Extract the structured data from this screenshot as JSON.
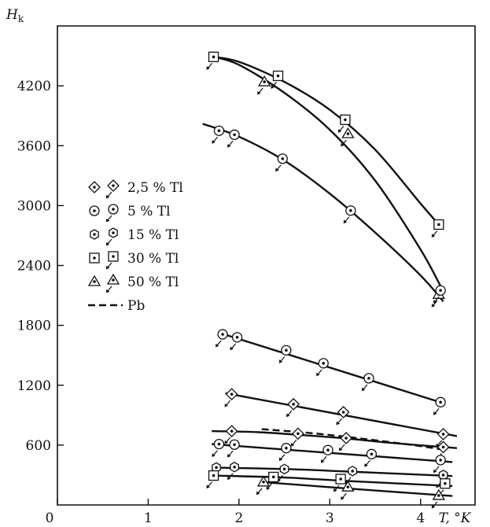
{
  "chart_data": {
    "type": "line",
    "ylabel_main": "H",
    "ylabel_sub": "k",
    "xlabel": "T, °K",
    "xlim": [
      0,
      4.6
    ],
    "ylim": [
      0,
      4800
    ],
    "x_ticks": [
      0,
      1,
      2,
      3,
      4
    ],
    "y_ticks": [
      600,
      1200,
      1800,
      2400,
      3000,
      3600,
      4200
    ],
    "grid": false,
    "legend_placement": "left-middle",
    "legend": [
      {
        "marker": "diamond",
        "label": "2,5 % Tl"
      },
      {
        "marker": "circle",
        "label": "5 % Tl"
      },
      {
        "marker": "hexagon",
        "label": "15 % Tl"
      },
      {
        "marker": "square",
        "label": "30 % Tl"
      },
      {
        "marker": "triangle",
        "label": "50 % Tl"
      },
      {
        "marker": "dash",
        "label": "Pb"
      }
    ],
    "curves": [
      {
        "group": "30 % Tl",
        "x": [
          1.72,
          2.0,
          2.5,
          3.0,
          3.5,
          4.0,
          4.2
        ],
        "y": [
          4490,
          4440,
          4240,
          3960,
          3560,
          3020,
          2810
        ]
      },
      {
        "group": "50 % Tl",
        "x": [
          1.72,
          2.0,
          2.5,
          3.0,
          3.5,
          4.0,
          4.25
        ],
        "y": [
          4490,
          4410,
          4130,
          3760,
          3250,
          2560,
          2140
        ]
      },
      {
        "group": "5 % Tl",
        "x": [
          1.6,
          2.0,
          2.5,
          3.0,
          3.5,
          4.0,
          4.25
        ],
        "y": [
          3820,
          3690,
          3450,
          3120,
          2730,
          2300,
          2040
        ]
      },
      {
        "group": "5 % Tl",
        "x": [
          1.8,
          4.25
        ],
        "y": [
          1720,
          1020
        ]
      },
      {
        "group": "2,5 % Tl",
        "x": [
          1.85,
          4.4
        ],
        "y": [
          1120,
          690
        ]
      },
      {
        "group": "2,5 % Tl",
        "x": [
          1.7,
          2.2,
          2.7,
          3.2,
          3.7,
          4.4
        ],
        "y": [
          740,
          730,
          700,
          665,
          620,
          570
        ]
      },
      {
        "group": "Pb",
        "dashed": true,
        "x": [
          2.25,
          2.8,
          3.4,
          4.0,
          4.3
        ],
        "y": [
          760,
          720,
          660,
          590,
          545
        ]
      },
      {
        "group": "5 % Tl",
        "x": [
          1.7,
          4.35
        ],
        "y": [
          610,
          430
        ]
      },
      {
        "group": "15 % Tl",
        "x": [
          1.7,
          2.5,
          3.2,
          4.35
        ],
        "y": [
          375,
          360,
          335,
          290
        ]
      },
      {
        "group": "30 % Tl",
        "x": [
          1.7,
          2.5,
          3.2,
          4.35
        ],
        "y": [
          295,
          275,
          240,
          190
        ]
      },
      {
        "group": "50 % Tl",
        "x": [
          2.25,
          3.2,
          4.35
        ],
        "y": [
          230,
          165,
          90
        ]
      }
    ],
    "points": [
      {
        "group": "30 % Tl",
        "marker": "square",
        "x": [
          1.72,
          2.43,
          3.17,
          4.2
        ],
        "y": [
          4490,
          4300,
          3860,
          2810
        ]
      },
      {
        "group": "50 % Tl",
        "marker": "triangle",
        "x": [
          2.28,
          3.2,
          4.2
        ],
        "y": [
          4240,
          3720,
          2110
        ]
      },
      {
        "group": "5 % Tl",
        "marker": "circle",
        "x": [
          1.78,
          1.95,
          2.48,
          3.23,
          4.22
        ],
        "y": [
          3750,
          3710,
          3470,
          2950,
          2150
        ]
      },
      {
        "group": "5 % Tl",
        "marker": "circle",
        "x": [
          1.82,
          1.98,
          2.52,
          2.93,
          3.43,
          4.22
        ],
        "y": [
          1710,
          1680,
          1550,
          1420,
          1270,
          1030
        ]
      },
      {
        "group": "2,5 % Tl",
        "marker": "diamond",
        "x": [
          1.92,
          2.6,
          3.15,
          4.25
        ],
        "y": [
          1110,
          1010,
          930,
          710
        ]
      },
      {
        "group": "2,5 % Tl",
        "marker": "diamond",
        "x": [
          1.92,
          2.65,
          3.18,
          4.25
        ],
        "y": [
          740,
          715,
          670,
          580
        ]
      },
      {
        "group": "5 % Tl",
        "marker": "circle",
        "x": [
          1.78,
          1.95,
          2.52,
          2.98,
          3.46,
          4.22
        ],
        "y": [
          610,
          605,
          570,
          550,
          510,
          450
        ]
      },
      {
        "group": "15 % Tl",
        "marker": "hexagon",
        "x": [
          1.75,
          1.95,
          2.5,
          3.25,
          4.25
        ],
        "y": [
          375,
          380,
          360,
          340,
          300
        ]
      },
      {
        "group": "30 % Tl",
        "marker": "square",
        "x": [
          1.72,
          2.38,
          3.12,
          4.27
        ],
        "y": [
          295,
          280,
          260,
          215
        ]
      },
      {
        "group": "50 % Tl",
        "marker": "triangle",
        "x": [
          2.27,
          3.2,
          4.2
        ],
        "y": [
          230,
          180,
          95
        ]
      }
    ]
  }
}
